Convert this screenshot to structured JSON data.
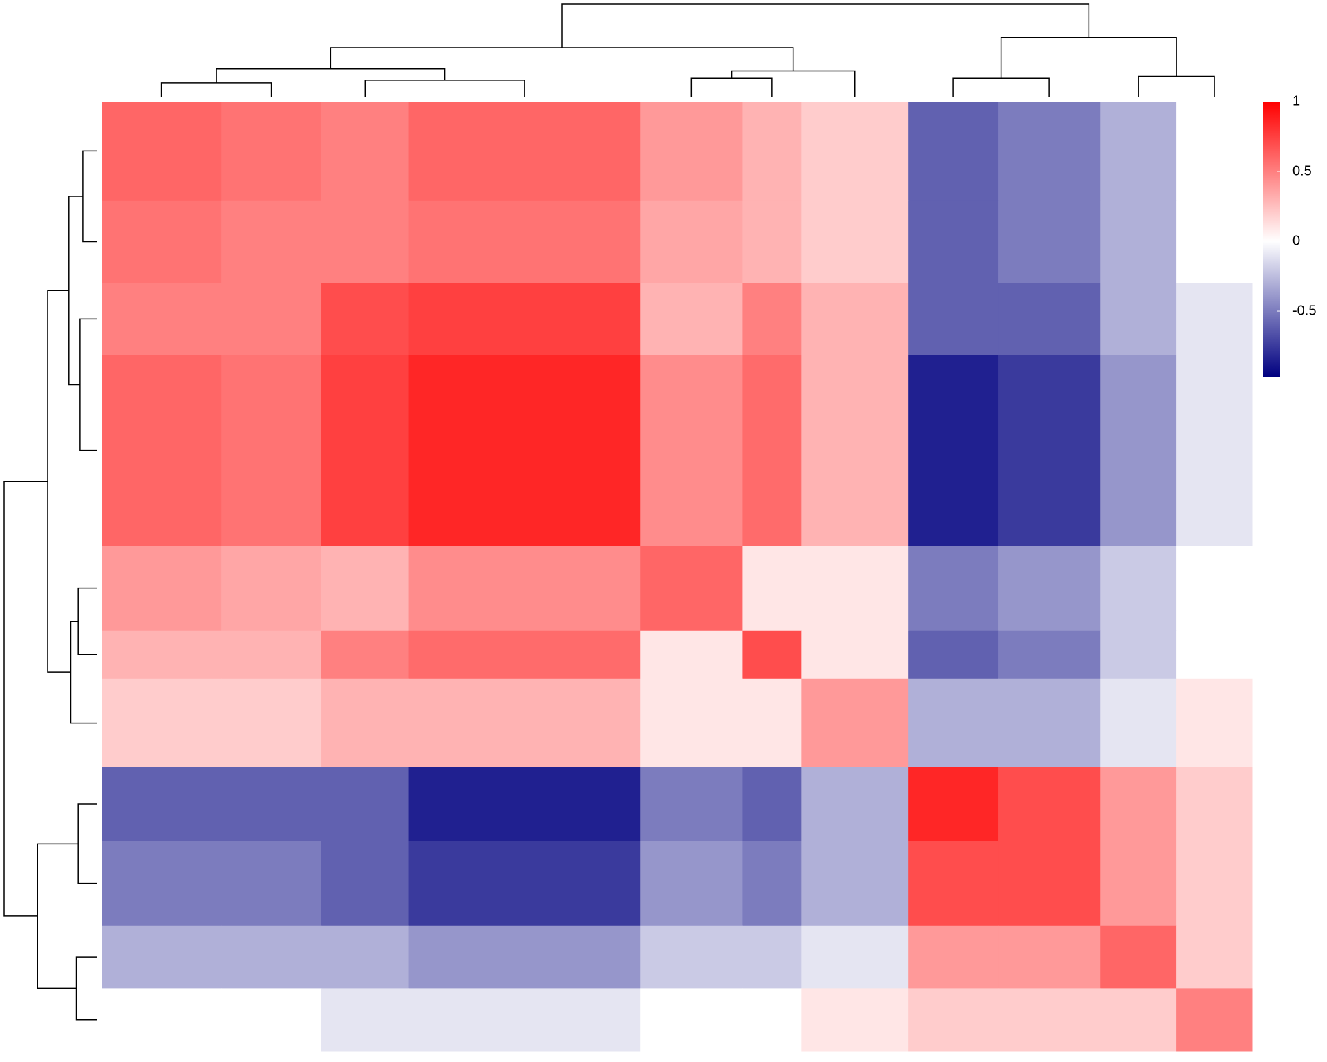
{
  "chart_data": {
    "type": "heatmap",
    "cluster_sizes": [
      10.4,
      8.7,
      7.6,
      20.1,
      8.9,
      5.1,
      9.3,
      7.8,
      8.9,
      6.6,
      6.6
    ],
    "matrix": [
      [
        0.6,
        0.55,
        0.5,
        0.6,
        0.4,
        0.3,
        0.2,
        -0.6,
        -0.5,
        -0.3,
        0
      ],
      [
        0.55,
        0.5,
        0.5,
        0.55,
        0.35,
        0.3,
        0.2,
        -0.6,
        -0.5,
        -0.3,
        0
      ],
      [
        0.5,
        0.5,
        0.7,
        0.75,
        0.3,
        0.5,
        0.3,
        -0.6,
        -0.6,
        -0.3,
        -0.1
      ],
      [
        0.6,
        0.55,
        0.75,
        0.85,
        0.45,
        0.58,
        0.3,
        -0.85,
        -0.75,
        -0.4,
        -0.1
      ],
      [
        0.4,
        0.35,
        0.3,
        0.45,
        0.6,
        0.1,
        0.1,
        -0.5,
        -0.4,
        -0.2,
        0
      ],
      [
        0.3,
        0.3,
        0.5,
        0.58,
        0.1,
        0.7,
        0.1,
        -0.6,
        -0.5,
        -0.2,
        0
      ],
      [
        0.2,
        0.2,
        0.3,
        0.3,
        0.1,
        0.1,
        0.4,
        -0.3,
        -0.3,
        -0.1,
        0.1
      ],
      [
        -0.6,
        -0.6,
        -0.6,
        -0.85,
        -0.5,
        -0.6,
        -0.3,
        0.85,
        0.7,
        0.4,
        0.2
      ],
      [
        -0.5,
        -0.5,
        -0.6,
        -0.75,
        -0.4,
        -0.5,
        -0.3,
        0.7,
        0.7,
        0.4,
        0.2
      ],
      [
        -0.3,
        -0.3,
        -0.3,
        -0.4,
        -0.2,
        -0.2,
        -0.1,
        0.4,
        0.4,
        0.6,
        0.2
      ],
      [
        0,
        0,
        -0.1,
        -0.1,
        0,
        0,
        0.1,
        0.2,
        0.2,
        0.2,
        0.5
      ]
    ],
    "linkage": [
      [
        0,
        1,
        0.15
      ],
      [
        2,
        3,
        0.18
      ],
      [
        11,
        12,
        0.3
      ],
      [
        4,
        5,
        0.2
      ],
      [
        14,
        6,
        0.28
      ],
      [
        13,
        15,
        0.53
      ],
      [
        7,
        8,
        0.2
      ],
      [
        9,
        10,
        0.22
      ],
      [
        17,
        18,
        0.64
      ],
      [
        16,
        19,
        1.0
      ]
    ],
    "clim": [
      -0.97,
      1
    ],
    "colormap_values": [
      -0.97,
      0,
      1
    ],
    "colormap_colors": [
      "#000080",
      "#ffffff",
      "#ff0000"
    ],
    "cticks": [
      1,
      0.5,
      0,
      -0.5
    ]
  }
}
